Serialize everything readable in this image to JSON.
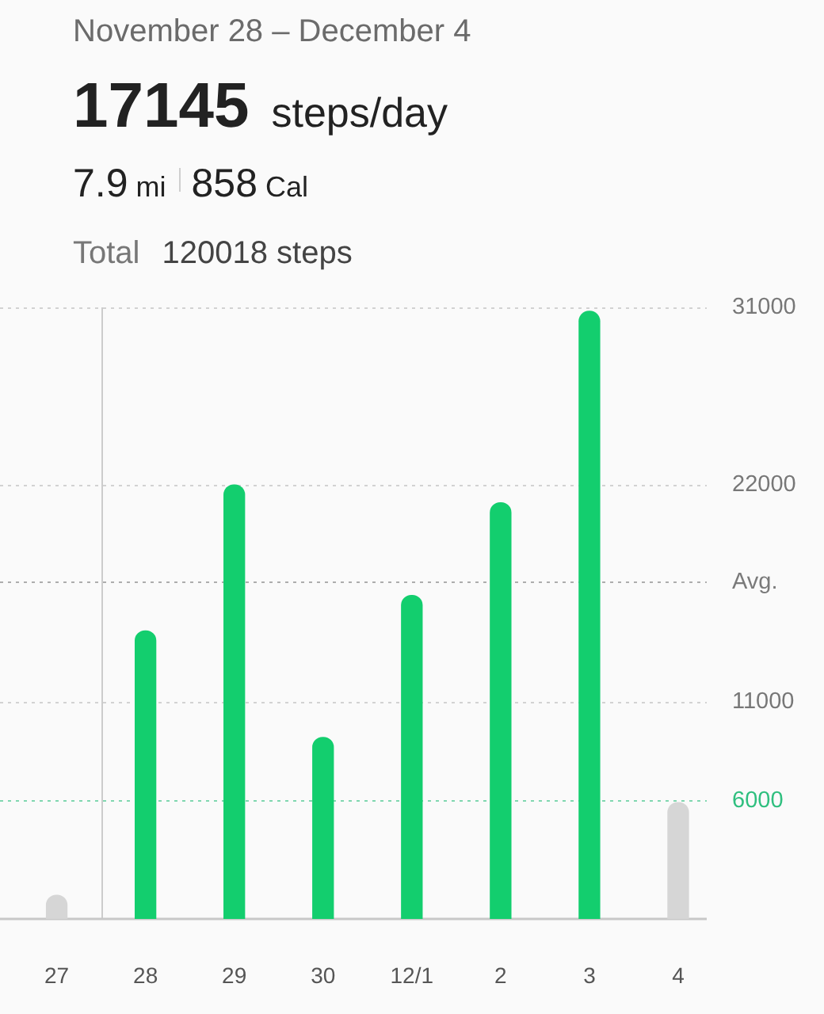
{
  "chart_data": {
    "type": "bar",
    "title": "November 28 – December 4",
    "subtitle": "17145 steps/day",
    "annotations": [
      "7.9 mi",
      "858 Cal",
      "Total 120018 steps"
    ],
    "categories": [
      "27",
      "28",
      "29",
      "30",
      "12/1",
      "2",
      "3",
      "4"
    ],
    "values": [
      1200,
      14600,
      22000,
      9200,
      16400,
      21100,
      30800,
      5900
    ],
    "colors": [
      "#d6d6d6",
      "#13ce6e",
      "#13ce6e",
      "#13ce6e",
      "#13ce6e",
      "#13ce6e",
      "#13ce6e",
      "#d6d6d6"
    ],
    "ylim": [
      0,
      31000
    ],
    "yticks": [
      31000,
      22000,
      11000
    ],
    "grid": "y",
    "ref_lines": [
      {
        "axis": "y",
        "value": 17145,
        "label": "Avg.",
        "color": "#7a7a7a",
        "line_style": "dotted"
      },
      {
        "axis": "y",
        "value": 6000,
        "label": "6000",
        "color": "#2fbf7f",
        "line_style": "dotted"
      },
      {
        "axis": "x",
        "value": "28",
        "color": "#cccccc",
        "line_style": "solid"
      }
    ]
  }
}
